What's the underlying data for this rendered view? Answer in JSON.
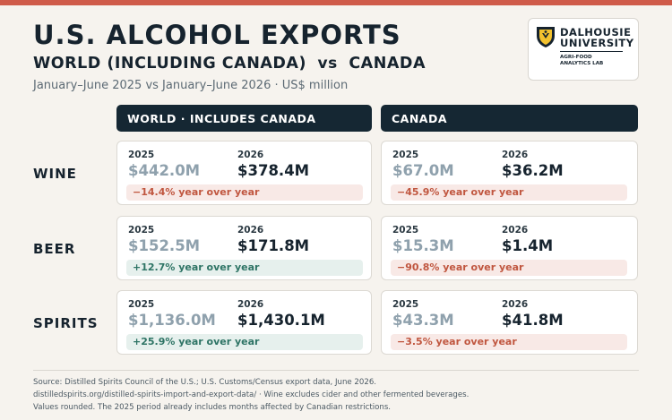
{
  "header": {
    "title": "U.S. ALCOHOL EXPORTS",
    "subtitle_left": "WORLD (INCLUDING CANADA)",
    "subtitle_vs": "vs",
    "subtitle_right": "CANADA",
    "period": "January–June 2025 vs January–June 2026 · US$ million"
  },
  "logo": {
    "line1": "DALHOUSIE",
    "line2": "UNIVERSITY",
    "lab1": "AGRI-FOOD",
    "lab2": "ANALYTICS LAB",
    "icon": "dalhousie-crest-icon"
  },
  "columns": {
    "world": "WORLD · INCLUDES CANADA",
    "canada": "CANADA"
  },
  "colors": {
    "navy": "#152733",
    "accent_red": "#cf5b4a",
    "negative_text": "#c0563f",
    "positive_text": "#2e7465"
  },
  "rows": [
    {
      "label": "WINE",
      "world": {
        "y1": "2025",
        "y2": "2026",
        "v1": "$442.0M",
        "v2": "$378.4M",
        "change": "−14.4% year over year",
        "trend": "neg"
      },
      "canada": {
        "y1": "2025",
        "y2": "2026",
        "v1": "$67.0M",
        "v2": "$36.2M",
        "change": "−45.9% year over year",
        "trend": "neg"
      }
    },
    {
      "label": "BEER",
      "world": {
        "y1": "2025",
        "y2": "2026",
        "v1": "$152.5M",
        "v2": "$171.8M",
        "change": "+12.7% year over year",
        "trend": "pos"
      },
      "canada": {
        "y1": "2025",
        "y2": "2026",
        "v1": "$15.3M",
        "v2": "$1.4M",
        "change": "−90.8% year over year",
        "trend": "neg"
      }
    },
    {
      "label": "SPIRITS",
      "world": {
        "y1": "2025",
        "y2": "2026",
        "v1": "$1,136.0M",
        "v2": "$1,430.1M",
        "change": "+25.9% year over year",
        "trend": "pos"
      },
      "canada": {
        "y1": "2025",
        "y2": "2026",
        "v1": "$43.3M",
        "v2": "$41.8M",
        "change": "−3.5% year over year",
        "trend": "neg"
      }
    }
  ],
  "footer": {
    "line1": "Source: Distilled Spirits Council of the U.S.; U.S. Customs/Census export data, June 2026.",
    "line2": "distilledspirits.org/distilled-spirits-import-and-export-data/ · Wine excludes cider and other fermented beverages.",
    "line3": "Values rounded. The 2025 period already includes months affected by Canadian restrictions."
  }
}
